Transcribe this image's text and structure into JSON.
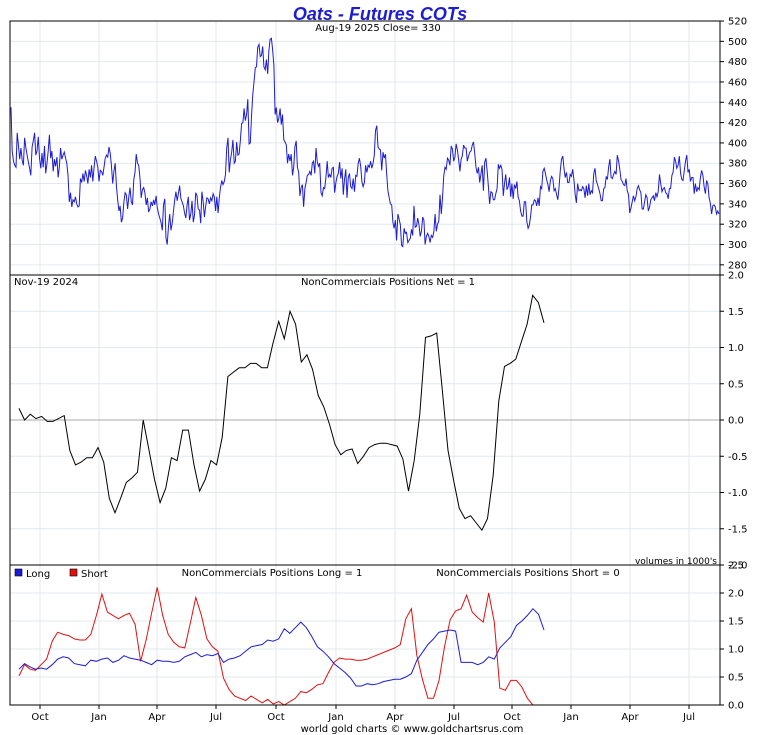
{
  "title": "Oats - Futures COTs",
  "footer": "world gold charts © www.goldchartsrus.com",
  "colors": {
    "title": "#1c1cd6",
    "price": "#1c1cd6",
    "net": "#000000",
    "long": "#1c1cd6",
    "short": "#e01010",
    "grid": "#e2e8ee"
  },
  "chart_data": [
    {
      "type": "line",
      "title": "Aug-19  2025   Close= 330",
      "x_tick_labels": [
        "Oct",
        "Jan",
        "Apr",
        "Jul",
        "Oct",
        "Jan",
        "Apr",
        "Jul",
        "Oct",
        "Jan",
        "Apr",
        "Jul"
      ],
      "ylim": [
        270,
        520
      ],
      "y_ticks": [
        280,
        300,
        320,
        340,
        360,
        380,
        400,
        420,
        440,
        460,
        480,
        500,
        520
      ],
      "grid": true,
      "series": [
        {
          "name": "",
          "values": [
            435,
            392,
            382,
            378,
            376,
            410,
            398,
            384,
            395,
            383,
            378,
            405,
            395,
            388,
            381,
            375,
            368,
            396,
            402,
            410,
            388,
            392,
            406,
            385,
            375,
            390,
            376,
            397,
            370,
            380,
            392,
            408,
            385,
            392,
            372,
            384,
            377,
            386,
            366,
            377,
            395,
            384,
            388,
            391,
            385,
            380,
            368,
            342,
            351,
            337,
            344,
            342,
            347,
            340,
            337,
            338,
            365,
            361,
            370,
            362,
            373,
            368,
            360,
            374,
            366,
            378,
            362,
            376,
            387,
            382,
            376,
            362,
            373,
            372,
            368,
            376,
            385,
            388,
            386,
            396,
            390,
            378,
            360,
            372,
            380,
            358,
            345,
            333,
            338,
            322,
            326,
            341,
            351,
            349,
            335,
            347,
            356,
            342,
            339,
            364,
            371,
            389,
            380,
            378,
            365,
            346,
            354,
            356,
            351,
            339,
            346,
            332,
            335,
            342,
            338,
            344,
            339,
            348,
            336,
            330,
            326,
            322,
            314,
            339,
            345,
            306,
            300,
            318,
            330,
            314,
            321,
            332,
            344,
            352,
            343,
            350,
            358,
            345,
            342,
            338,
            331,
            326,
            339,
            347,
            324,
            330,
            343,
            322,
            329,
            351,
            348,
            335,
            334,
            321,
            352,
            342,
            327,
            338,
            346,
            345,
            340,
            346,
            343,
            350,
            347,
            333,
            347,
            331,
            346,
            356,
            363,
            359,
            362,
            369,
            395,
            405,
            371,
            384,
            391,
            403,
            380,
            382,
            401,
            388,
            389,
            403,
            419,
            420,
            434,
            422,
            428,
            443,
            399,
            400,
            426,
            448,
            460,
            474,
            475,
            494,
            497,
            485,
            486,
            495,
            475,
            472,
            482,
            468,
            491,
            502,
            503,
            492,
            476,
            428,
            435,
            420,
            424,
            434,
            418,
            428,
            403,
            401,
            398,
            380,
            389,
            382,
            389,
            368,
            376,
            396,
            402,
            376,
            371,
            348,
            356,
            359,
            337,
            355,
            361,
            368,
            369,
            372,
            368,
            380,
            382,
            370,
            395,
            381,
            377,
            380,
            351,
            348,
            356,
            355,
            366,
            382,
            366,
            369,
            366,
            375,
            376,
            351,
            361,
            367,
            370,
            381,
            365,
            375,
            349,
            364,
            374,
            346,
            366,
            370,
            357,
            355,
            365,
            352,
            368,
            367,
            380,
            385,
            377,
            362,
            357,
            361,
            378,
            371,
            378,
            376,
            382,
            375,
            380,
            388,
            412,
            417,
            396,
            394,
            393,
            373,
            391,
            385,
            389,
            369,
            353,
            346,
            340,
            339,
            322,
            316,
            324,
            304,
            330,
            325,
            320,
            299,
            298,
            316,
            311,
            312,
            302,
            304,
            306,
            315,
            309,
            338,
            317,
            318,
            326,
            320,
            308,
            313,
            327,
            324,
            300,
            308,
            311,
            308,
            302,
            309,
            307,
            312,
            330,
            313,
            320,
            323,
            349,
            330,
            346,
            367,
            376,
            374,
            385,
            383,
            378,
            397,
            394,
            382,
            386,
            399,
            393,
            384,
            372,
            384,
            387,
            398,
            395,
            395,
            382,
            387,
            391,
            392,
            398,
            401,
            390,
            376,
            370,
            376,
            361,
            369,
            378,
            353,
            381,
            385,
            373,
            357,
            340,
            352,
            351,
            344,
            344,
            350,
            355,
            379,
            375,
            378,
            374,
            348,
            360,
            369,
            354,
            357,
            366,
            347,
            360,
            345,
            359,
            355,
            362,
            347,
            343,
            333,
            328,
            328,
            342,
            342,
            323,
            316,
            319,
            327,
            339,
            339,
            344,
            343,
            338,
            346,
            338,
            357,
            355,
            372,
            375,
            370,
            364,
            359,
            352,
            363,
            367,
            365,
            353,
            355,
            349,
            344,
            356,
            373,
            384,
            387,
            375,
            366,
            371,
            361,
            361,
            369,
            367,
            374,
            364,
            349,
            341,
            360,
            353,
            354,
            353,
            357,
            355,
            346,
            358,
            348,
            360,
            349,
            353,
            351,
            370,
            375,
            363,
            359,
            355,
            350,
            343,
            343,
            355,
            356,
            367,
            364,
            376,
            384,
            366,
            365,
            369,
            372,
            369,
            388,
            382,
            374,
            364,
            362,
            359,
            358,
            365,
            353,
            349,
            331,
            336,
            342,
            348,
            343,
            347,
            355,
            358,
            354,
            351,
            335,
            335,
            342,
            349,
            346,
            333,
            337,
            344,
            346,
            348,
            343,
            351,
            347,
            352,
            369,
            360,
            352,
            355,
            356,
            351,
            350,
            345,
            355,
            355,
            368,
            371,
            386,
            382,
            375,
            378,
            387,
            370,
            364,
            363,
            373,
            382,
            388,
            371,
            374,
            362,
            366,
            366,
            350,
            360,
            352,
            356,
            354,
            366,
            373,
            368,
            357,
            350,
            363,
            360,
            346,
            341,
            330,
            338,
            339,
            337,
            330,
            333,
            330
          ]
        }
      ]
    },
    {
      "type": "line",
      "title": "NonCommercials Positions Net = 1",
      "date_label": "Nov-19  2024",
      "note": "volumes in 1000's",
      "ylim": [
        -2.0,
        2.0
      ],
      "y_ticks": [
        -2.0,
        -1.5,
        -1.0,
        -0.5,
        0.0,
        0.5,
        1.0,
        1.5,
        2.0
      ],
      "grid": true,
      "series": [
        {
          "name": "",
          "values": [
            0.16,
            0.0,
            0.08,
            0.02,
            0.05,
            -0.02,
            -0.02,
            0.02,
            0.06,
            -0.42,
            -0.62,
            -0.58,
            -0.52,
            -0.52,
            -0.38,
            -0.58,
            -1.08,
            -1.28,
            -1.08,
            -0.86,
            -0.8,
            -0.72,
            0.0,
            -0.4,
            -0.82,
            -1.14,
            -0.94,
            -0.52,
            -0.56,
            -0.14,
            -0.14,
            -0.62,
            -0.98,
            -0.82,
            -0.56,
            -0.62,
            -0.24,
            0.6,
            0.66,
            0.72,
            0.72,
            0.78,
            0.78,
            0.72,
            0.72,
            1.06,
            1.36,
            1.12,
            1.5,
            1.32,
            0.8,
            0.9,
            0.7,
            0.34,
            0.18,
            -0.06,
            -0.34,
            -0.48,
            -0.42,
            -0.4,
            -0.6,
            -0.5,
            -0.38,
            -0.34,
            -0.32,
            -0.32,
            -0.34,
            -0.36,
            -0.54,
            -0.98,
            -0.56,
            0.08,
            1.14,
            1.16,
            1.2,
            0.4,
            -0.42,
            -0.84,
            -1.22,
            -1.36,
            -1.32,
            -1.42,
            -1.52,
            -1.36,
            -0.76,
            0.26,
            0.74,
            0.78,
            0.84,
            1.08,
            1.32,
            1.72,
            1.62,
            1.34
          ]
        }
      ]
    },
    {
      "type": "line",
      "title": "NonCommercials Positions Long = 1",
      "title_right": "NonCommercials Positions Short = 0",
      "x_tick_labels": [
        "Oct",
        "Jan",
        "Apr",
        "Jul",
        "Oct",
        "Jan",
        "Apr",
        "Jul",
        "Oct",
        "Jan",
        "Apr",
        "Jul"
      ],
      "ylim": [
        0.0,
        2.5
      ],
      "y_ticks": [
        0.0,
        0.5,
        1.0,
        1.5,
        2.0,
        2.5
      ],
      "grid": true,
      "legend": "top-left",
      "series": [
        {
          "name": "Long",
          "values": [
            0.64,
            0.74,
            0.68,
            0.64,
            0.66,
            0.64,
            0.72,
            0.82,
            0.86,
            0.84,
            0.74,
            0.72,
            0.7,
            0.8,
            0.78,
            0.82,
            0.84,
            0.76,
            0.8,
            0.88,
            0.84,
            0.82,
            0.8,
            0.76,
            0.72,
            0.8,
            0.78,
            0.78,
            0.76,
            0.78,
            0.86,
            0.9,
            0.94,
            0.86,
            0.9,
            0.88,
            0.92,
            0.76,
            0.82,
            0.84,
            0.88,
            0.96,
            1.04,
            1.06,
            1.08,
            1.16,
            1.14,
            1.18,
            1.36,
            1.28,
            1.38,
            1.48,
            1.38,
            1.22,
            1.04,
            0.96,
            0.86,
            0.74,
            0.66,
            0.58,
            0.48,
            0.34,
            0.34,
            0.38,
            0.36,
            0.38,
            0.42,
            0.44,
            0.46,
            0.46,
            0.5,
            0.56,
            0.8,
            0.94,
            1.08,
            1.18,
            1.3,
            1.32,
            1.34,
            1.32,
            0.76,
            0.76,
            0.76,
            0.72,
            0.76,
            0.86,
            0.82,
            1.02,
            1.12,
            1.22,
            1.42,
            1.5,
            1.6,
            1.72,
            1.62,
            1.34
          ]
        },
        {
          "name": "Short",
          "values": [
            0.52,
            0.72,
            0.64,
            0.62,
            0.72,
            0.82,
            1.14,
            1.3,
            1.26,
            1.24,
            1.18,
            1.16,
            1.16,
            1.26,
            1.6,
            1.98,
            1.66,
            1.6,
            1.54,
            1.6,
            1.64,
            1.44,
            0.78,
            1.16,
            1.64,
            2.1,
            1.6,
            1.26,
            1.12,
            1.04,
            1.02,
            1.46,
            1.92,
            1.6,
            1.18,
            1.04,
            0.96,
            0.48,
            0.28,
            0.16,
            0.12,
            0.08,
            0.16,
            0.1,
            0.04,
            0.1,
            0.02,
            0.06,
            0.0,
            0.06,
            0.12,
            0.24,
            0.22,
            0.28,
            0.36,
            0.38,
            0.58,
            0.76,
            0.84,
            0.82,
            0.82,
            0.8,
            0.8,
            0.82,
            0.86,
            0.9,
            0.94,
            0.98,
            1.02,
            1.08,
            1.54,
            1.72,
            0.88,
            0.46,
            0.12,
            0.12,
            0.44,
            1.04,
            1.52,
            1.68,
            1.72,
            1.96,
            1.66,
            1.56,
            1.48,
            2.0,
            1.48,
            0.3,
            0.26,
            0.44,
            0.44,
            0.32,
            0.12,
            0.0,
            0.0,
            0.0
          ]
        }
      ]
    }
  ]
}
